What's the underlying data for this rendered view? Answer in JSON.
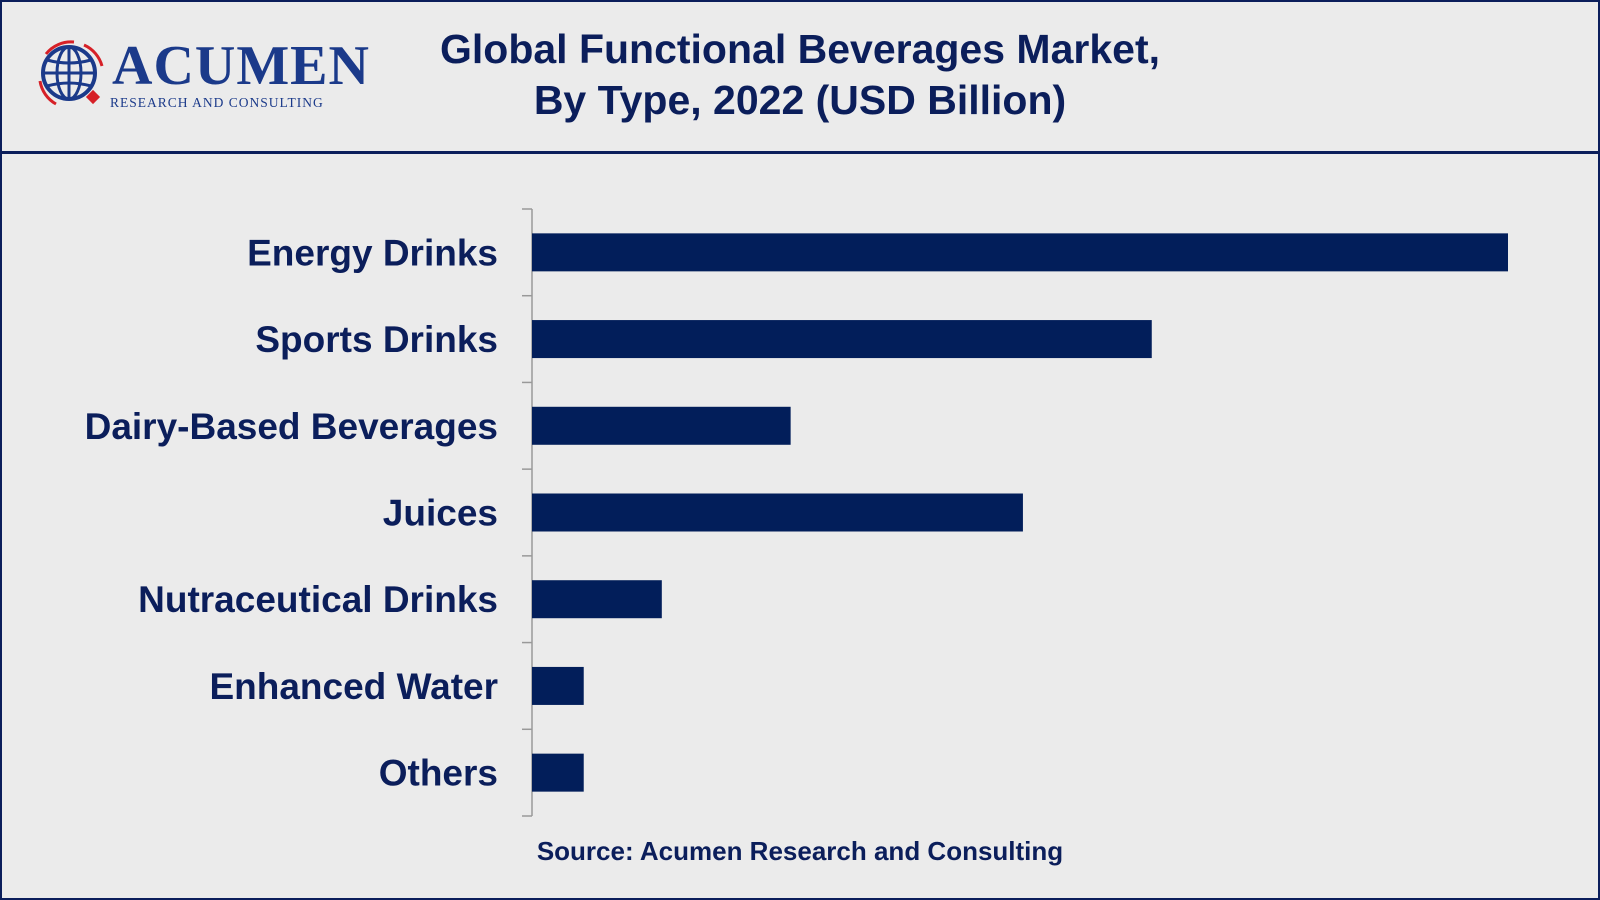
{
  "header": {
    "logo": {
      "name": "ACUMEN",
      "tagline": "RESEARCH AND CONSULTING"
    },
    "title_line1": "Global Functional Beverages Market,",
    "title_line2": "By Type, 2022 (USD Billion)"
  },
  "chart_data": {
    "type": "bar",
    "orientation": "horizontal",
    "title": "Global Functional Beverages Market, By Type, 2022 (USD Billion)",
    "categories": [
      "Energy Drinks",
      "Sports Drinks",
      "Dairy-Based Beverages",
      "Juices",
      "Nutraceutical Drinks",
      "Enhanced Water",
      "Others"
    ],
    "values": [
      100,
      63.5,
      26.5,
      50.3,
      13.3,
      5.3,
      5.3
    ],
    "value_note": "relative bar lengths (no value axis shown)",
    "xlim": [
      0,
      100
    ],
    "grid": false,
    "bar_color": "#021e5a"
  },
  "source": "Source: Acumen Research and Consulting"
}
